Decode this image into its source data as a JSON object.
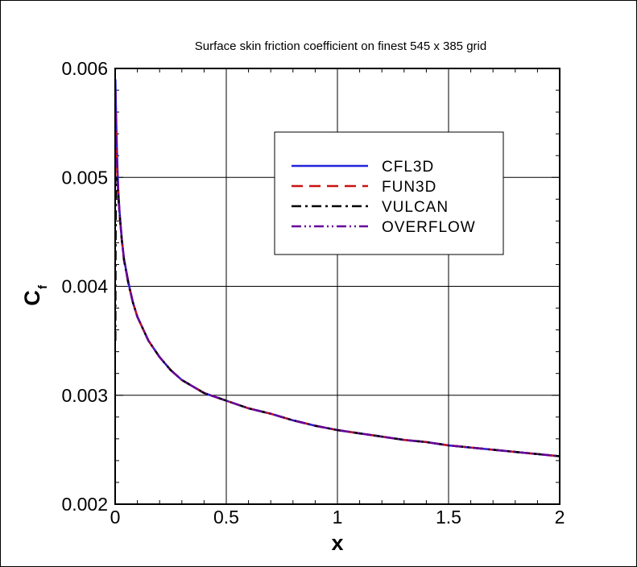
{
  "chart_data": {
    "type": "line",
    "title": "Surface skin friction coefficient on finest 545 x 385 grid",
    "xlabel": "x",
    "ylabel": "C",
    "ylabel_sub": "f",
    "xlim": [
      0,
      2
    ],
    "ylim": [
      0.002,
      0.006
    ],
    "xticks": [
      0,
      0.5,
      1,
      1.5,
      2
    ],
    "xtick_labels": [
      "0",
      "0.5",
      "1",
      "1.5",
      "2"
    ],
    "yticks": [
      0.002,
      0.003,
      0.004,
      0.005,
      0.006
    ],
    "ytick_labels": [
      "0.002",
      "0.003",
      "0.004",
      "0.005",
      "0.006"
    ],
    "grid": true,
    "legend_position": "upper-right",
    "series": [
      {
        "name": "CFL3D",
        "color": "#2222dd",
        "dash": "solid",
        "x": [
          0.001,
          0.003,
          0.006,
          0.01,
          0.015,
          0.02,
          0.03,
          0.04,
          0.06,
          0.08,
          0.1,
          0.15,
          0.2,
          0.25,
          0.3,
          0.4,
          0.5,
          0.6,
          0.7,
          0.8,
          0.9,
          1.0,
          1.1,
          1.2,
          1.3,
          1.4,
          1.5,
          1.6,
          1.7,
          1.8,
          1.9,
          2.0
        ],
        "y": [
          0.0059,
          0.0057,
          0.0054,
          0.0051,
          0.00485,
          0.00468,
          0.00443,
          0.00425,
          0.00403,
          0.00385,
          0.00372,
          0.0035,
          0.00335,
          0.00323,
          0.00314,
          0.00302,
          0.00295,
          0.00288,
          0.00283,
          0.00277,
          0.00272,
          0.00268,
          0.00265,
          0.00262,
          0.00259,
          0.00257,
          0.00254,
          0.00252,
          0.0025,
          0.00248,
          0.00246,
          0.00244
        ]
      },
      {
        "name": "FUN3D",
        "color": "#cc1111",
        "dash": "dashed",
        "x": [
          0.001,
          0.003,
          0.006,
          0.01,
          0.015,
          0.02,
          0.03,
          0.04,
          0.06,
          0.08,
          0.1,
          0.15,
          0.2,
          0.25,
          0.3,
          0.4,
          0.5,
          0.6,
          0.7,
          0.8,
          0.9,
          1.0,
          1.1,
          1.2,
          1.3,
          1.4,
          1.5,
          1.6,
          1.7,
          1.8,
          1.9,
          2.0
        ],
        "y": [
          0.0056,
          0.0054,
          0.0052,
          0.005,
          0.00482,
          0.00466,
          0.00442,
          0.00424,
          0.00402,
          0.00385,
          0.00372,
          0.0035,
          0.00335,
          0.00323,
          0.00314,
          0.00302,
          0.00295,
          0.00288,
          0.00283,
          0.00277,
          0.00272,
          0.00268,
          0.00265,
          0.00262,
          0.00259,
          0.00257,
          0.00254,
          0.00252,
          0.0025,
          0.00248,
          0.00246,
          0.00244
        ]
      },
      {
        "name": "VULCAN",
        "color": "#000000",
        "dash": "dashdot",
        "x": [
          0.001,
          0.002,
          0.004,
          0.006,
          0.01,
          0.015,
          0.02,
          0.03,
          0.04,
          0.06,
          0.08,
          0.1,
          0.15,
          0.2,
          0.25,
          0.3,
          0.4,
          0.5,
          0.6,
          0.7,
          0.8,
          0.9,
          1.0,
          1.1,
          1.2,
          1.3,
          1.4,
          1.5,
          1.6,
          1.7,
          1.8,
          1.9,
          2.0
        ],
        "y": [
          0.0035,
          0.0044,
          0.0049,
          0.005,
          0.00495,
          0.0048,
          0.00466,
          0.00442,
          0.00424,
          0.00402,
          0.00385,
          0.00372,
          0.0035,
          0.00335,
          0.00323,
          0.00314,
          0.00302,
          0.00295,
          0.00288,
          0.00283,
          0.00277,
          0.00272,
          0.00268,
          0.00265,
          0.00262,
          0.00259,
          0.00257,
          0.00254,
          0.00252,
          0.0025,
          0.00248,
          0.00246,
          0.00244
        ]
      },
      {
        "name": "OVERFLOW",
        "color": "#660099",
        "dash": "dashdotdot",
        "x": [
          0.001,
          0.003,
          0.006,
          0.01,
          0.015,
          0.02,
          0.03,
          0.04,
          0.06,
          0.08,
          0.1,
          0.15,
          0.2,
          0.25,
          0.3,
          0.4,
          0.5,
          0.6,
          0.7,
          0.8,
          0.9,
          1.0,
          1.1,
          1.2,
          1.3,
          1.4,
          1.5,
          1.6,
          1.7,
          1.8,
          1.9,
          2.0
        ],
        "y": [
          0.0058,
          0.0056,
          0.0053,
          0.005,
          0.00484,
          0.00467,
          0.00443,
          0.00425,
          0.00403,
          0.00385,
          0.00372,
          0.0035,
          0.00335,
          0.00323,
          0.00314,
          0.00302,
          0.00295,
          0.00288,
          0.00283,
          0.00277,
          0.00272,
          0.00268,
          0.00265,
          0.00262,
          0.00259,
          0.00257,
          0.00254,
          0.00252,
          0.0025,
          0.00248,
          0.00246,
          0.00244
        ]
      }
    ]
  }
}
